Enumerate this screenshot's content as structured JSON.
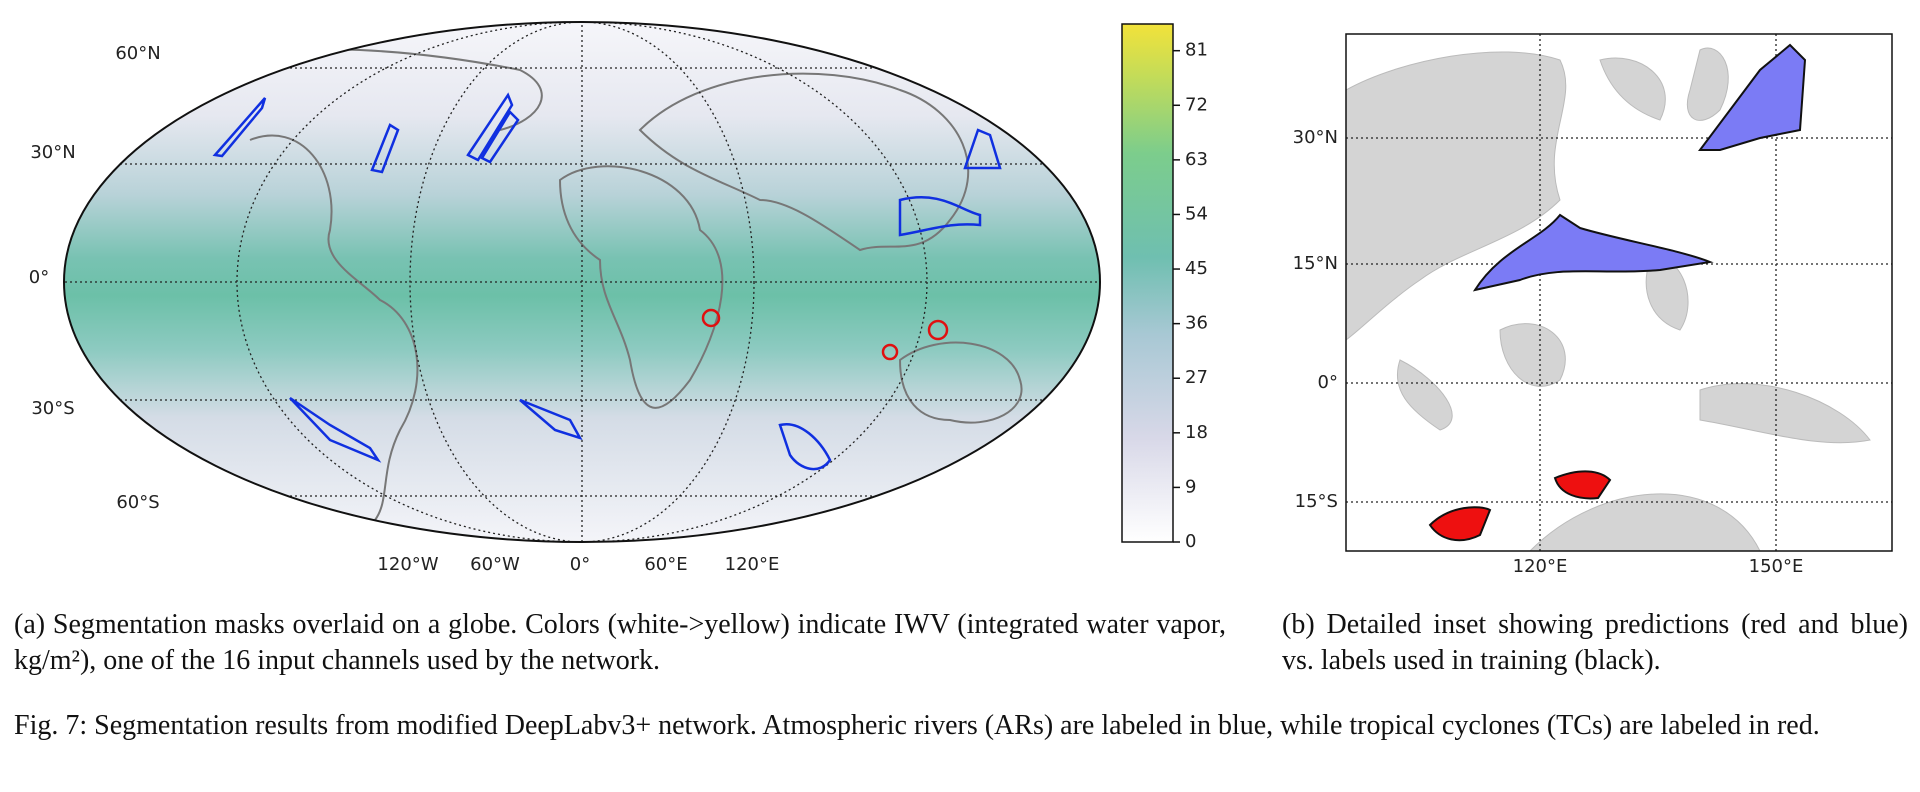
{
  "panel_a": {
    "lat_labels": [
      "60°N",
      "30°N",
      "0°",
      "30°S",
      "60°S"
    ],
    "lon_labels": [
      "120°W",
      "60°W",
      "0°",
      "60°E",
      "120°E"
    ],
    "colorbar": {
      "lim": [
        0,
        85.4
      ],
      "ticks": [
        0,
        9,
        18,
        27,
        36,
        45,
        54,
        63,
        72,
        81
      ]
    },
    "caption": "(a) Segmentation masks overlaid on a globe. Colors (white->yellow) indicate IWV (integrated water vapor, kg/m²), one of the 16 input channels used by the network."
  },
  "panel_b": {
    "lat_labels": [
      "30°N",
      "15°N",
      "0°",
      "15°S"
    ],
    "lon_labels": [
      "120°E",
      "150°E"
    ],
    "caption": "(b) Detailed inset showing predictions (red and blue) vs. labels used in training (black)."
  },
  "caption": "Fig. 7: Segmentation results from modified DeepLabv3+ network. Atmospheric rivers (ARs) are labeled in blue, while tropical cyclones (TCs) are labeled in red."
}
